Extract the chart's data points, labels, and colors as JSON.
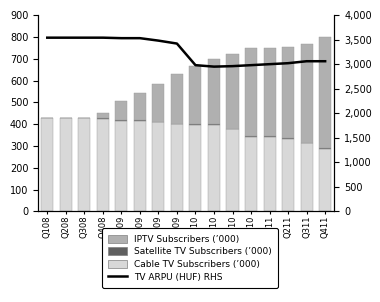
{
  "categories": [
    "Q108",
    "Q208",
    "Q308",
    "Q408",
    "Q109",
    "Q209",
    "Q309",
    "Q409",
    "Q110",
    "Q210",
    "Q310",
    "Q410",
    "Q111",
    "Q211",
    "Q311",
    "Q411"
  ],
  "cable_tv": [
    428,
    428,
    427,
    425,
    415,
    415,
    410,
    400,
    398,
    398,
    378,
    343,
    343,
    333,
    313,
    288
  ],
  "satellite_tv": [
    0,
    0,
    0,
    2,
    2,
    2,
    2,
    2,
    2,
    2,
    2,
    2,
    2,
    2,
    2,
    2
  ],
  "iptv": [
    2,
    2,
    2,
    22,
    88,
    128,
    173,
    228,
    268,
    300,
    340,
    402,
    402,
    418,
    452,
    508
  ],
  "tv_arpu": [
    3540,
    3540,
    3540,
    3540,
    3530,
    3530,
    3480,
    3420,
    2980,
    2950,
    2960,
    2980,
    3000,
    3020,
    3060,
    3060
  ],
  "cable_color": "#d8d8d8",
  "satellite_color": "#606060",
  "iptv_color": "#b0b0b0",
  "line_color": "#000000",
  "ylim_left": [
    0,
    900
  ],
  "ylim_right": [
    0,
    4000
  ],
  "yticks_left": [
    0,
    100,
    200,
    300,
    400,
    500,
    600,
    700,
    800,
    900
  ],
  "yticks_right": [
    0,
    500,
    1000,
    1500,
    2000,
    2500,
    3000,
    3500,
    4000
  ],
  "legend_labels": [
    "IPTV Subscribers (’000)",
    "Satellite TV Subscribers (’000)",
    "Cable TV Subscribers (’000)",
    "TV ARPU (HUF) RHS"
  ]
}
